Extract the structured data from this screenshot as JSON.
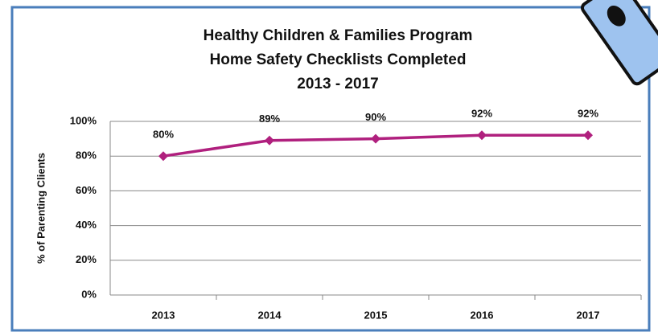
{
  "chart_data": {
    "type": "line",
    "title": [
      "Healthy Children & Families Program",
      "Home Safety Checklists Completed",
      "2013 - 2017"
    ],
    "y_label": "% of Parenting Clients",
    "categories": [
      "2013",
      "2014",
      "2015",
      "2016",
      "2017"
    ],
    "series": [
      {
        "name": "Home Safety Checklists Completed",
        "color": "#b0207e",
        "values": [
          80,
          89,
          90,
          92,
          92
        ],
        "value_labels": [
          "80%",
          "89%",
          "90%",
          "92%",
          "92%"
        ]
      }
    ],
    "ylim": [
      0,
      100
    ],
    "yticks": [
      {
        "value": 0,
        "label": "0%"
      },
      {
        "value": 20,
        "label": "20%"
      },
      {
        "value": 40,
        "label": "40%"
      },
      {
        "value": 60,
        "label": "60%"
      },
      {
        "value": 80,
        "label": "80%"
      },
      {
        "value": 100,
        "label": "100%"
      }
    ],
    "grid": true
  }
}
